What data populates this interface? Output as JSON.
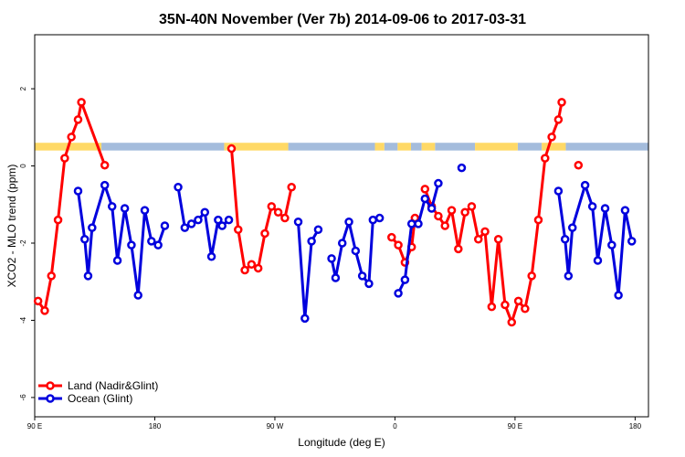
{
  "chart_data": {
    "type": "line",
    "title": "35N-40N November (Ver 7b)   2014-09-06 to 2017-03-31",
    "xlabel": "Longitude (deg E)",
    "ylabel": "XCO2 - MLO trend (ppm)",
    "xlim": [
      90,
      550
    ],
    "ylim": [
      -6.5,
      3.4
    ],
    "xticks": [
      {
        "value": 90,
        "label": "90 E"
      },
      {
        "value": 180,
        "label": "180"
      },
      {
        "value": 270,
        "label": "90 W"
      },
      {
        "value": 360,
        "label": "0"
      },
      {
        "value": 450,
        "label": "90 E"
      },
      {
        "value": 540,
        "label": "180"
      }
    ],
    "yticks": [
      {
        "value": 2,
        "label": "2"
      },
      {
        "value": 0,
        "label": "0"
      },
      {
        "value": -2,
        "label": "-2"
      },
      {
        "value": -4,
        "label": "-4"
      },
      {
        "value": -6,
        "label": "-6"
      }
    ],
    "legend": {
      "position": "bottom-left"
    },
    "series": [
      {
        "name": "Land (Nadir&Glint)",
        "color": "#ff0000",
        "segments": [
          [
            [
              92.5,
              -3.5
            ],
            [
              97.5,
              -3.75
            ],
            [
              102.5,
              -2.85
            ],
            [
              107.5,
              -1.4
            ],
            [
              112.5,
              0.2
            ],
            [
              117.5,
              0.75
            ],
            [
              122.5,
              1.2
            ],
            [
              125,
              1.65
            ],
            [
              142.5,
              0.02
            ]
          ],
          [
            [
              237.5,
              0.45
            ],
            [
              242.5,
              -1.65
            ],
            [
              247.5,
              -2.7
            ],
            [
              252.5,
              -2.55
            ],
            [
              257.5,
              -2.65
            ],
            [
              262.5,
              -1.75
            ],
            [
              267.5,
              -1.05
            ],
            [
              272.5,
              -1.2
            ],
            [
              277.5,
              -1.35
            ],
            [
              282.5,
              -0.55
            ]
          ],
          [
            [
              357.5,
              -1.85
            ],
            [
              362.5,
              -2.05
            ],
            [
              367.5,
              -2.5
            ],
            [
              372.5,
              -2.1
            ],
            [
              375,
              -1.35
            ]
          ],
          [
            [
              382.5,
              -0.6
            ],
            [
              387.5,
              -1.05
            ],
            [
              392.5,
              -1.3
            ],
            [
              397.5,
              -1.55
            ],
            [
              402.5,
              -1.15
            ],
            [
              407.5,
              -2.15
            ],
            [
              412.5,
              -1.2
            ],
            [
              417.5,
              -1.05
            ],
            [
              422.5,
              -1.9
            ],
            [
              427.5,
              -1.7
            ],
            [
              432.5,
              -3.65
            ],
            [
              437.5,
              -1.9
            ],
            [
              442.5,
              -3.6
            ],
            [
              447.5,
              -4.05
            ],
            [
              452.5,
              -3.5
            ],
            [
              457.5,
              -3.7
            ],
            [
              462.5,
              -2.85
            ],
            [
              467.5,
              -1.4
            ],
            [
              472.5,
              0.2
            ],
            [
              477.5,
              0.75
            ],
            [
              482.5,
              1.2
            ],
            [
              485,
              1.65
            ]
          ],
          [
            [
              497.5,
              0.02
            ]
          ]
        ]
      },
      {
        "name": "Ocean (Glint)",
        "color": "#0000dd",
        "segments": [
          [
            [
              122.5,
              -0.65
            ],
            [
              127.5,
              -1.9
            ],
            [
              130,
              -2.85
            ],
            [
              133,
              -1.6
            ],
            [
              142.5,
              -0.5
            ],
            [
              148,
              -1.05
            ],
            [
              152,
              -2.45
            ],
            [
              157.5,
              -1.1
            ],
            [
              162.5,
              -2.05
            ],
            [
              167.5,
              -3.35
            ],
            [
              172.5,
              -1.15
            ],
            [
              177.5,
              -1.95
            ],
            [
              182.5,
              -2.05
            ],
            [
              187.5,
              -1.55
            ]
          ],
          [
            [
              197.5,
              -0.55
            ],
            [
              202.5,
              -1.6
            ],
            [
              207.5,
              -1.5
            ],
            [
              212.5,
              -1.4
            ],
            [
              217.5,
              -1.2
            ],
            [
              222.5,
              -2.35
            ],
            [
              227.5,
              -1.4
            ],
            [
              230.5,
              -1.55
            ],
            [
              235.5,
              -1.4
            ]
          ],
          [
            [
              287.5,
              -1.45
            ],
            [
              292.5,
              -3.95
            ],
            [
              297.5,
              -1.95
            ],
            [
              302.5,
              -1.65
            ]
          ],
          [
            [
              312.5,
              -2.4
            ],
            [
              315.5,
              -2.9
            ],
            [
              320.5,
              -2.0
            ],
            [
              325.5,
              -1.45
            ],
            [
              330.5,
              -2.2
            ],
            [
              335.5,
              -2.85
            ],
            [
              340.5,
              -3.05
            ],
            [
              343.5,
              -1.4
            ],
            [
              348.5,
              -1.35
            ]
          ],
          [
            [
              362.5,
              -3.3
            ],
            [
              367.5,
              -2.95
            ],
            [
              372.5,
              -1.5
            ],
            [
              377.5,
              -1.5
            ],
            [
              382.5,
              -0.85
            ],
            [
              387.5,
              -1.1
            ],
            [
              392.5,
              -0.45
            ]
          ],
          [
            [
              410,
              -0.05
            ]
          ],
          [
            [
              482.5,
              -0.65
            ],
            [
              487.5,
              -1.9
            ],
            [
              490,
              -2.85
            ],
            [
              493,
              -1.6
            ],
            [
              502.5,
              -0.5
            ],
            [
              508,
              -1.05
            ],
            [
              512,
              -2.45
            ],
            [
              517.5,
              -1.1
            ],
            [
              522.5,
              -2.05
            ],
            [
              527.5,
              -3.35
            ],
            [
              532.5,
              -1.15
            ],
            [
              537.5,
              -1.95
            ]
          ]
        ]
      }
    ],
    "band": {
      "y_top": 0.6,
      "y_bottom": 0.4,
      "land_color": "#ffd966",
      "ocean_color": "#a4bcdc",
      "land_ranges": [
        [
          90,
          140
        ],
        [
          232,
          280
        ],
        [
          345,
          352
        ],
        [
          362,
          372
        ],
        [
          380,
          390
        ],
        [
          420,
          452
        ],
        [
          470,
          488
        ]
      ],
      "ocean_ranges": [
        [
          140,
          232
        ],
        [
          280,
          345
        ],
        [
          352,
          362
        ],
        [
          372,
          380
        ],
        [
          390,
          420
        ],
        [
          452,
          470
        ],
        [
          488,
          550
        ]
      ]
    }
  }
}
